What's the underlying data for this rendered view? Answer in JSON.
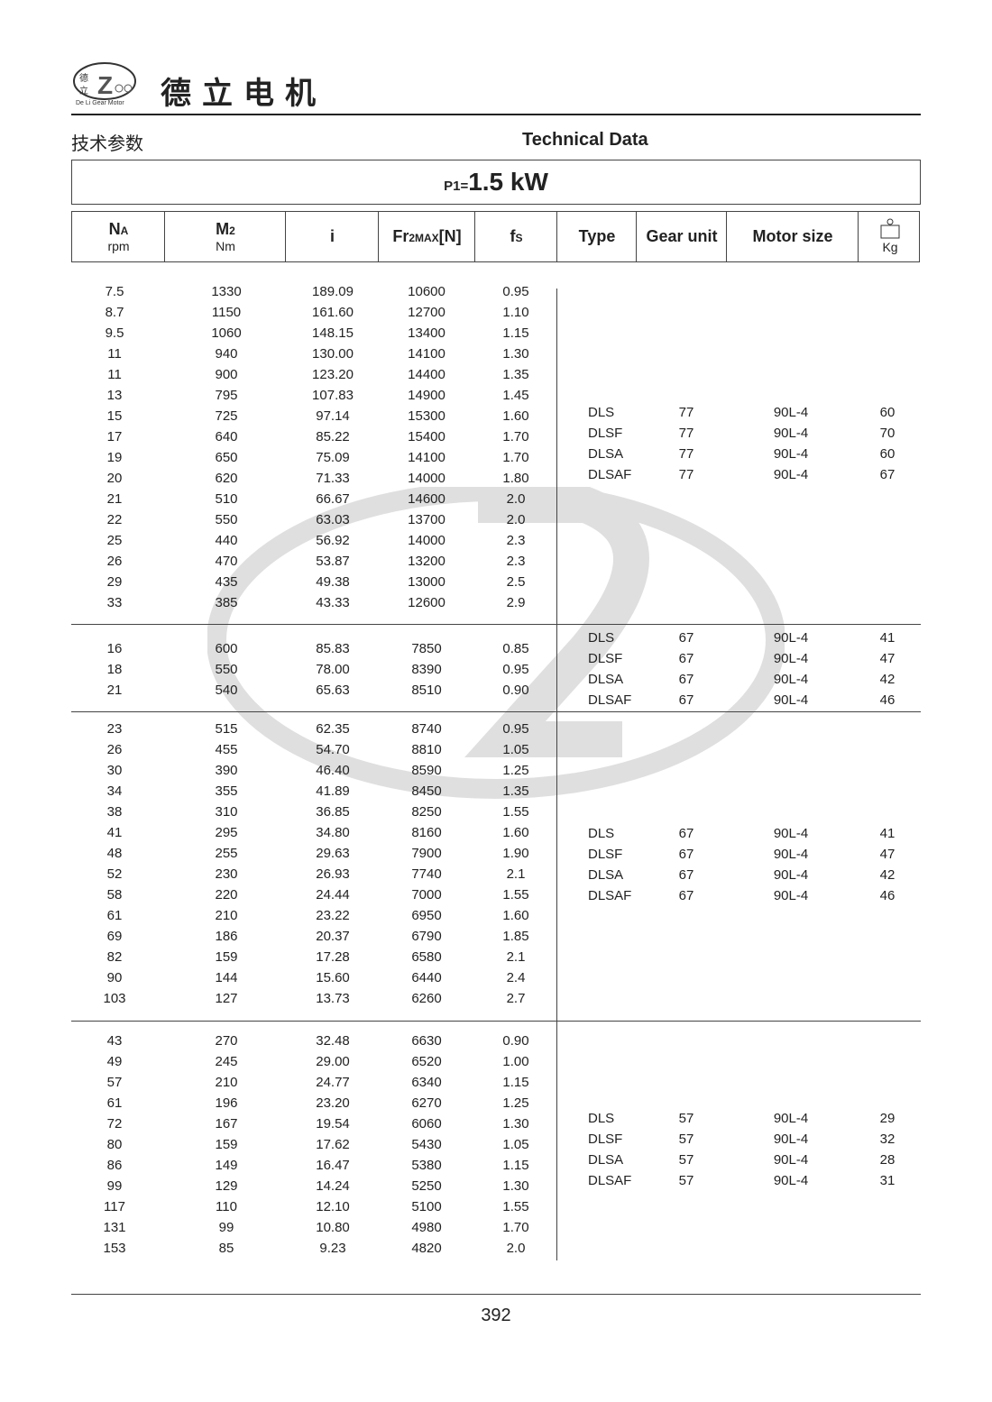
{
  "header": {
    "logo_text": "De Li Gear Motor",
    "logo_chars": "德立",
    "brand": "德立电机",
    "title_cn": "技术参数",
    "title_en": "Technical Data"
  },
  "power": {
    "label": "P1=",
    "sub": "1",
    "value": "1.5 kW"
  },
  "columns": [
    {
      "main": "N",
      "sub": "A",
      "unit": "rpm"
    },
    {
      "main": "M",
      "sub": "2",
      "unit": "Nm"
    },
    {
      "main": "i"
    },
    {
      "main": "Fr",
      "sub": "2MAX",
      "tail": "[N]"
    },
    {
      "main": "f",
      "sub": "s"
    },
    {
      "main": "Type"
    },
    {
      "main": "Gear unit"
    },
    {
      "main": "Motor size"
    },
    {
      "main": "",
      "unit": "Kg",
      "icon": "weight-icon"
    }
  ],
  "groups": [
    {
      "rows": [
        [
          "7.5",
          "1330",
          "189.09",
          "10600",
          "0.95"
        ],
        [
          "8.7",
          "1150",
          "161.60",
          "12700",
          "1.10"
        ],
        [
          "9.5",
          "1060",
          "148.15",
          "13400",
          "1.15"
        ],
        [
          "11",
          "940",
          "130.00",
          "14100",
          "1.30"
        ],
        [
          "11",
          "900",
          "123.20",
          "14400",
          "1.35"
        ],
        [
          "13",
          "795",
          "107.83",
          "14900",
          "1.45"
        ],
        [
          "15",
          "725",
          "97.14",
          "15300",
          "1.60"
        ],
        [
          "17",
          "640",
          "85.22",
          "15400",
          "1.70"
        ],
        [
          "19",
          "650",
          "75.09",
          "14100",
          "1.70"
        ],
        [
          "20",
          "620",
          "71.33",
          "14000",
          "1.80"
        ],
        [
          "21",
          "510",
          "66.67",
          "14600",
          "2.0"
        ],
        [
          "22",
          "550",
          "63.03",
          "13700",
          "2.0"
        ],
        [
          "25",
          "440",
          "56.92",
          "14000",
          "2.3"
        ],
        [
          "26",
          "470",
          "53.87",
          "13200",
          "2.3"
        ],
        [
          "29",
          "435",
          "49.38",
          "13000",
          "2.5"
        ],
        [
          "33",
          "385",
          "43.33",
          "12600",
          "2.9"
        ]
      ],
      "specs": [
        [
          "DLS",
          "77",
          "90L-4",
          "60"
        ],
        [
          "DLSF",
          "77",
          "90L-4",
          "70"
        ],
        [
          "DLSA",
          "77",
          "90L-4",
          "60"
        ],
        [
          "DLSAF",
          "77",
          "90L-4",
          "67"
        ]
      ]
    },
    {
      "rows": [
        [
          "16",
          "600",
          "85.83",
          "7850",
          "0.85"
        ],
        [
          "18",
          "550",
          "78.00",
          "8390",
          "0.95"
        ],
        [
          "21",
          "540",
          "65.63",
          "8510",
          "0.90"
        ]
      ],
      "specs": [
        [
          "DLS",
          "67",
          "90L-4",
          "41"
        ],
        [
          "DLSF",
          "67",
          "90L-4",
          "47"
        ],
        [
          "DLSA",
          "67",
          "90L-4",
          "42"
        ],
        [
          "DLSAF",
          "67",
          "90L-4",
          "46"
        ]
      ]
    },
    {
      "rows": [
        [
          "23",
          "515",
          "62.35",
          "8740",
          "0.95"
        ],
        [
          "26",
          "455",
          "54.70",
          "8810",
          "1.05"
        ],
        [
          "30",
          "390",
          "46.40",
          "8590",
          "1.25"
        ],
        [
          "34",
          "355",
          "41.89",
          "8450",
          "1.35"
        ],
        [
          "38",
          "310",
          "36.85",
          "8250",
          "1.55"
        ],
        [
          "41",
          "295",
          "34.80",
          "8160",
          "1.60"
        ],
        [
          "48",
          "255",
          "29.63",
          "7900",
          "1.90"
        ],
        [
          "52",
          "230",
          "26.93",
          "7740",
          "2.1"
        ],
        [
          "58",
          "220",
          "24.44",
          "7000",
          "1.55"
        ],
        [
          "61",
          "210",
          "23.22",
          "6950",
          "1.60"
        ],
        [
          "69",
          "186",
          "20.37",
          "6790",
          "1.85"
        ],
        [
          "82",
          "159",
          "17.28",
          "6580",
          "2.1"
        ],
        [
          "90",
          "144",
          "15.60",
          "6440",
          "2.4"
        ],
        [
          "103",
          "127",
          "13.73",
          "6260",
          "2.7"
        ]
      ],
      "specs": [
        [
          "DLS",
          "67",
          "90L-4",
          "41"
        ],
        [
          "DLSF",
          "67",
          "90L-4",
          "47"
        ],
        [
          "DLSA",
          "67",
          "90L-4",
          "42"
        ],
        [
          "DLSAF",
          "67",
          "90L-4",
          "46"
        ]
      ]
    },
    {
      "rows": [
        [
          "43",
          "270",
          "32.48",
          "6630",
          "0.90"
        ],
        [
          "49",
          "245",
          "29.00",
          "6520",
          "1.00"
        ],
        [
          "57",
          "210",
          "24.77",
          "6340",
          "1.15"
        ],
        [
          "61",
          "196",
          "23.20",
          "6270",
          "1.25"
        ],
        [
          "72",
          "167",
          "19.54",
          "6060",
          "1.30"
        ],
        [
          "80",
          "159",
          "17.62",
          "5430",
          "1.05"
        ],
        [
          "86",
          "149",
          "16.47",
          "5380",
          "1.15"
        ],
        [
          "99",
          "129",
          "14.24",
          "5250",
          "1.30"
        ],
        [
          "117",
          "110",
          "12.10",
          "5100",
          "1.55"
        ],
        [
          "131",
          "99",
          "10.80",
          "4980",
          "1.70"
        ],
        [
          "153",
          "85",
          "9.23",
          "4820",
          "2.0"
        ]
      ],
      "specs": [
        [
          "DLS",
          "57",
          "90L-4",
          "29"
        ],
        [
          "DLSF",
          "57",
          "90L-4",
          "32"
        ],
        [
          "DLSA",
          "57",
          "90L-4",
          "28"
        ],
        [
          "DLSAF",
          "57",
          "90L-4",
          "31"
        ]
      ]
    }
  ],
  "footer": {
    "page_number": "392"
  }
}
